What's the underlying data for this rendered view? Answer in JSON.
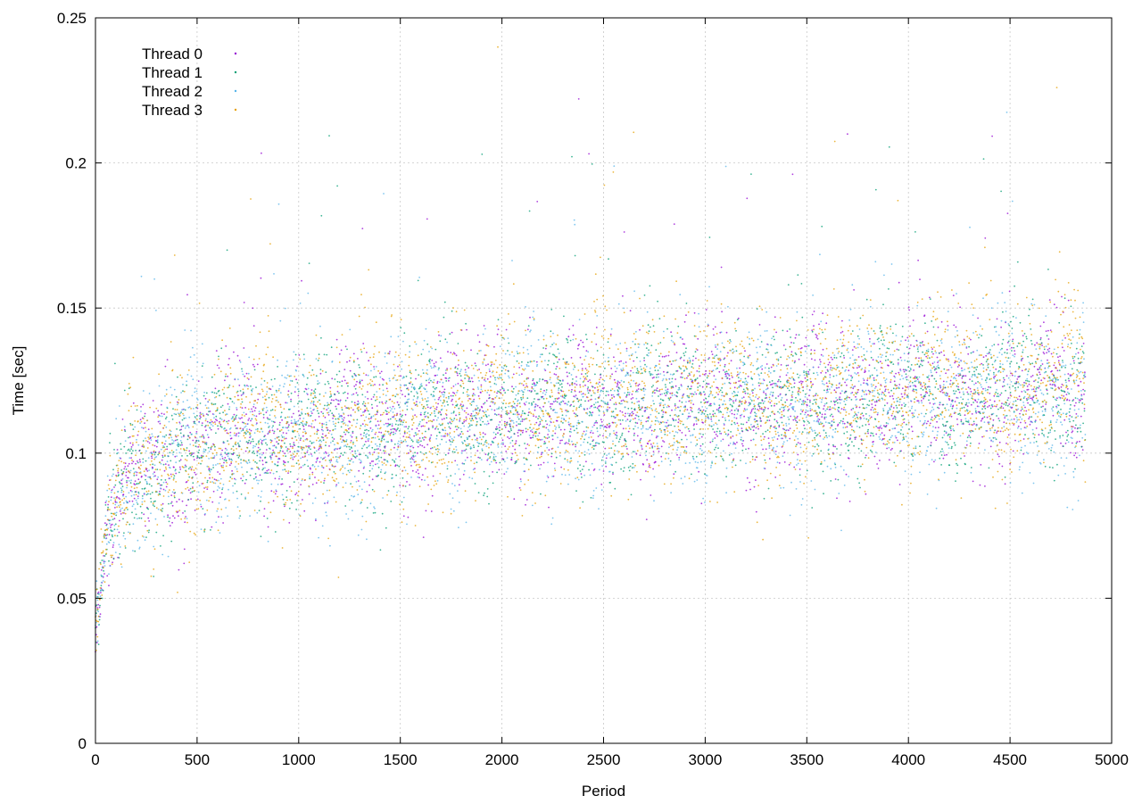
{
  "chart_data": {
    "type": "scatter",
    "title": "",
    "xlabel": "Period",
    "ylabel": "Time [sec]",
    "xlim": [
      0,
      5000
    ],
    "ylim": [
      0,
      0.25
    ],
    "xticks": [
      "0",
      "500",
      "1000",
      "1500",
      "2000",
      "2500",
      "3000",
      "3500",
      "4000",
      "4500",
      "5000"
    ],
    "yticks": [
      "0",
      "0.05",
      "0.1",
      "0.15",
      "0.2",
      "0.25"
    ],
    "grid": true,
    "legend_position": "top-left",
    "series": [
      {
        "name": "Thread 0",
        "color": "#9400d3",
        "trend_x": [
          0,
          25,
          50,
          100,
          150,
          200,
          300,
          400,
          500,
          700,
          1000,
          1300,
          1500,
          2000,
          2500,
          3000,
          3500,
          4000,
          4500,
          4870
        ],
        "trend_y": [
          0.038,
          0.05,
          0.068,
          0.085,
          0.09,
          0.093,
          0.097,
          0.099,
          0.101,
          0.104,
          0.107,
          0.109,
          0.111,
          0.114,
          0.116,
          0.118,
          0.119,
          0.12,
          0.121,
          0.122
        ],
        "spread": 0.012
      },
      {
        "name": "Thread 1",
        "color": "#009e73",
        "trend_x": [
          0,
          25,
          50,
          100,
          150,
          200,
          300,
          400,
          500,
          700,
          1000,
          1300,
          1500,
          2000,
          2500,
          3000,
          3500,
          4000,
          4500,
          4870
        ],
        "trend_y": [
          0.04,
          0.052,
          0.07,
          0.086,
          0.091,
          0.094,
          0.097,
          0.1,
          0.102,
          0.105,
          0.108,
          0.11,
          0.112,
          0.115,
          0.117,
          0.118,
          0.119,
          0.12,
          0.121,
          0.123
        ],
        "spread": 0.012
      },
      {
        "name": "Thread 2",
        "color": "#56b4e9",
        "trend_x": [
          0,
          25,
          50,
          100,
          150,
          200,
          300,
          400,
          500,
          700,
          1000,
          1300,
          1500,
          2000,
          2500,
          3000,
          3500,
          4000,
          4500,
          4870
        ],
        "trend_y": [
          0.039,
          0.051,
          0.069,
          0.085,
          0.09,
          0.093,
          0.096,
          0.099,
          0.101,
          0.104,
          0.107,
          0.109,
          0.111,
          0.114,
          0.116,
          0.117,
          0.118,
          0.119,
          0.12,
          0.121
        ],
        "spread": 0.013
      },
      {
        "name": "Thread 3",
        "color": "#e69f00",
        "trend_x": [
          0,
          25,
          50,
          100,
          150,
          200,
          300,
          400,
          500,
          700,
          1000,
          1300,
          1500,
          2000,
          2500,
          3000,
          3500,
          4000,
          4500,
          4870
        ],
        "trend_y": [
          0.041,
          0.053,
          0.071,
          0.087,
          0.092,
          0.095,
          0.098,
          0.101,
          0.103,
          0.106,
          0.109,
          0.111,
          0.113,
          0.116,
          0.118,
          0.119,
          0.12,
          0.121,
          0.122,
          0.124
        ],
        "spread": 0.014
      }
    ]
  }
}
